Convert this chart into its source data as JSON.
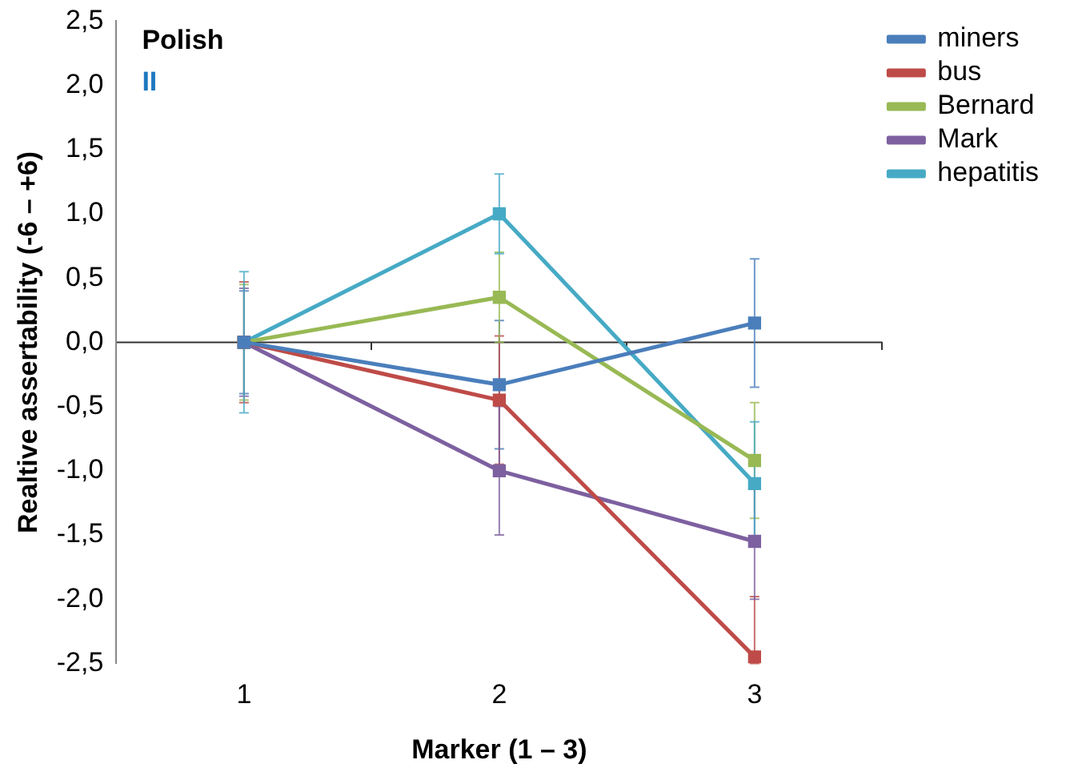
{
  "chart_data": {
    "type": "line",
    "title": "Polish",
    "subtitle": "II",
    "xlabel": "Marker (1 – 3)",
    "ylabel": "Realtive assertability (-6 – +6)",
    "categories": [
      "1",
      "2",
      "3"
    ],
    "series": [
      {
        "name": "miners",
        "color": "#4a7ebb",
        "values": [
          0,
          -0.33,
          0.15
        ],
        "errors": [
          0.4,
          0.5,
          0.5
        ]
      },
      {
        "name": "bus",
        "color": "#be4b48",
        "values": [
          0,
          -0.45,
          -2.45
        ],
        "errors": [
          0.47,
          0.5,
          [
            -2.5,
            -1.98
          ]
        ]
      },
      {
        "name": "Bernard",
        "color": "#98b954",
        "values": [
          0,
          0.35,
          -0.92
        ],
        "errors": [
          0.45,
          0.35,
          0.45
        ]
      },
      {
        "name": "Mark",
        "color": "#7d60a0",
        "values": [
          0,
          -1.0,
          -1.55
        ],
        "errors": [
          0.42,
          0.5,
          0.45
        ]
      },
      {
        "name": "hepatitis",
        "color": "#46aac5",
        "values": [
          0,
          1.0,
          -1.1
        ],
        "errors": [
          0.55,
          0.31,
          0.48
        ]
      }
    ],
    "ylim": [
      -2.5,
      2.5
    ],
    "yticks": [
      {
        "value": -2.5,
        "label": "-2,5"
      },
      {
        "value": -2,
        "label": "-2,0"
      },
      {
        "value": -1.5,
        "label": "-1,5"
      },
      {
        "value": -1,
        "label": "-1,0"
      },
      {
        "value": -0.5,
        "label": "-0,5"
      },
      {
        "value": 0,
        "label": "0,0"
      },
      {
        "value": 0.5,
        "label": "0,5"
      },
      {
        "value": 1,
        "label": "1,0"
      },
      {
        "value": 1.5,
        "label": "1,5"
      },
      {
        "value": 2,
        "label": "2,0"
      },
      {
        "value": 2.5,
        "label": "2,5"
      }
    ],
    "ref_lines": [
      {
        "axis": "y",
        "value": 0,
        "color": "#333333"
      }
    ],
    "grid": false,
    "legend": "top right",
    "marker": "square",
    "line_style": "solid"
  }
}
